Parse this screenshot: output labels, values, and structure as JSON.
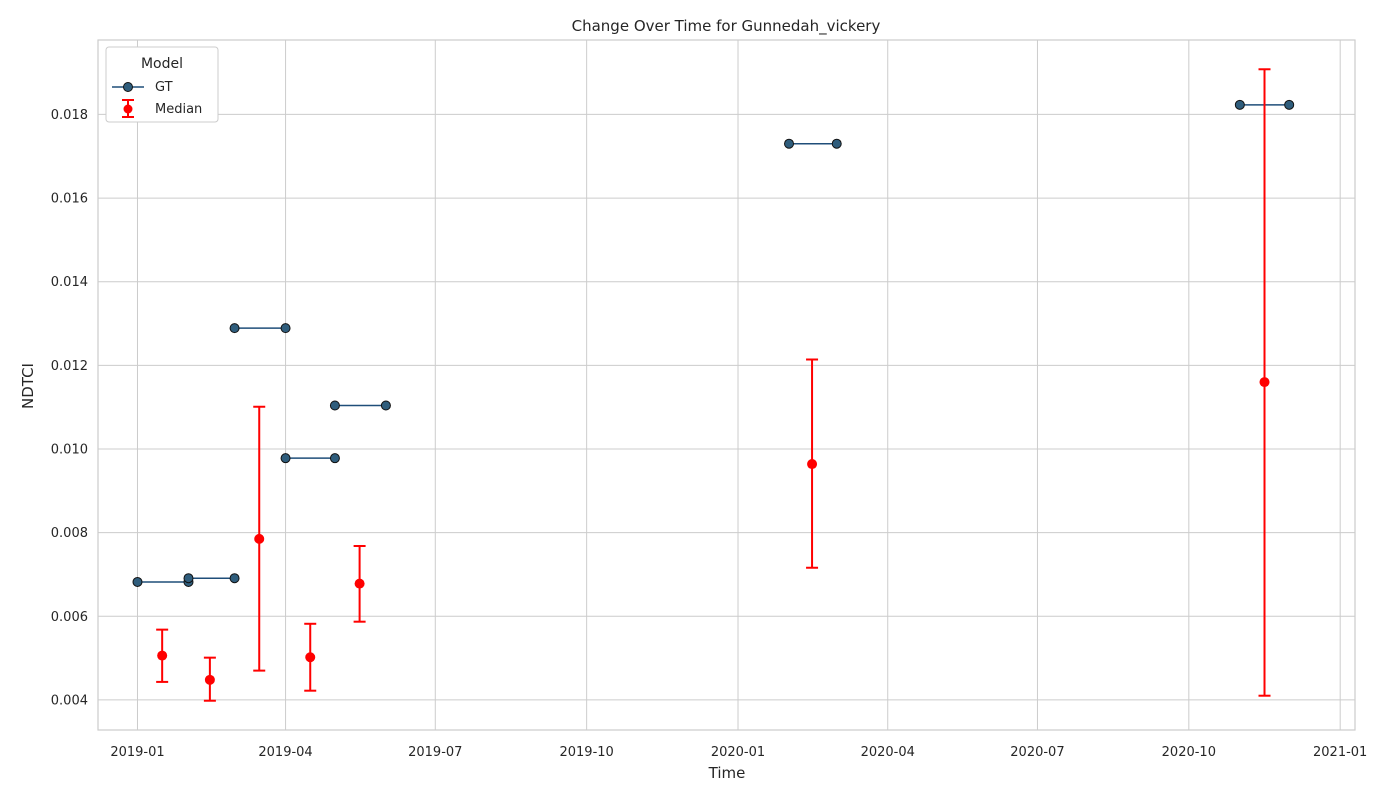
{
  "chart_data": {
    "type": "line",
    "title": "Change Over Time for Gunnedah_vickery",
    "xlabel": "Time",
    "ylabel": "NDTCI",
    "x_axis_type": "date",
    "xlim": [
      "2018-12-08",
      "2021-01-10"
    ],
    "ylim": [
      0.00328,
      0.01978
    ],
    "x_ticks": [
      "2019-01",
      "2019-04",
      "2019-07",
      "2019-10",
      "2020-01",
      "2020-04",
      "2020-07",
      "2020-10",
      "2021-01"
    ],
    "y_ticks": [
      "0.004",
      "0.006",
      "0.008",
      "0.010",
      "0.012",
      "0.014",
      "0.016",
      "0.018"
    ],
    "grid": true,
    "legend": {
      "title": "Model",
      "placement": "top-left",
      "entries": [
        "GT",
        "Median"
      ]
    },
    "colors": {
      "gt_line": "#1f4e79",
      "gt_marker": "#2f5d7c",
      "median": "#ff0000",
      "grid": "#cccccc"
    },
    "series": [
      {
        "name": "GT",
        "kind": "line-segments",
        "segments": [
          {
            "x": [
              "2019-01-01",
              "2019-02-01"
            ],
            "y": [
              0.00682,
              0.00682
            ]
          },
          {
            "x": [
              "2019-02-01",
              "2019-03-01"
            ],
            "y": [
              0.00691,
              0.00691
            ]
          },
          {
            "x": [
              "2019-03-01",
              "2019-04-01"
            ],
            "y": [
              0.01289,
              0.01289
            ]
          },
          {
            "x": [
              "2019-04-01",
              "2019-05-01"
            ],
            "y": [
              0.00978,
              0.00978
            ]
          },
          {
            "x": [
              "2019-05-01",
              "2019-06-01"
            ],
            "y": [
              0.01104,
              0.01104
            ]
          },
          {
            "x": [
              "2020-02-01",
              "2020-03-01"
            ],
            "y": [
              0.0173,
              0.0173
            ]
          },
          {
            "x": [
              "2020-11-01",
              "2020-12-01"
            ],
            "y": [
              0.01823,
              0.01823
            ]
          }
        ]
      },
      {
        "name": "Median",
        "kind": "errorbar",
        "points": [
          {
            "x": "2019-01-16",
            "y": 0.00506,
            "low": 0.00443,
            "high": 0.00568
          },
          {
            "x": "2019-02-14",
            "y": 0.00448,
            "low": 0.00398,
            "high": 0.00501
          },
          {
            "x": "2019-03-16",
            "y": 0.00785,
            "low": 0.0047,
            "high": 0.01101
          },
          {
            "x": "2019-04-16",
            "y": 0.00502,
            "low": 0.00422,
            "high": 0.00582
          },
          {
            "x": "2019-05-16",
            "y": 0.00678,
            "low": 0.00587,
            "high": 0.00768
          },
          {
            "x": "2020-02-15",
            "y": 0.00964,
            "low": 0.00716,
            "high": 0.01214
          },
          {
            "x": "2020-11-16",
            "y": 0.0116,
            "low": 0.0041,
            "high": 0.01908
          }
        ]
      }
    ]
  }
}
